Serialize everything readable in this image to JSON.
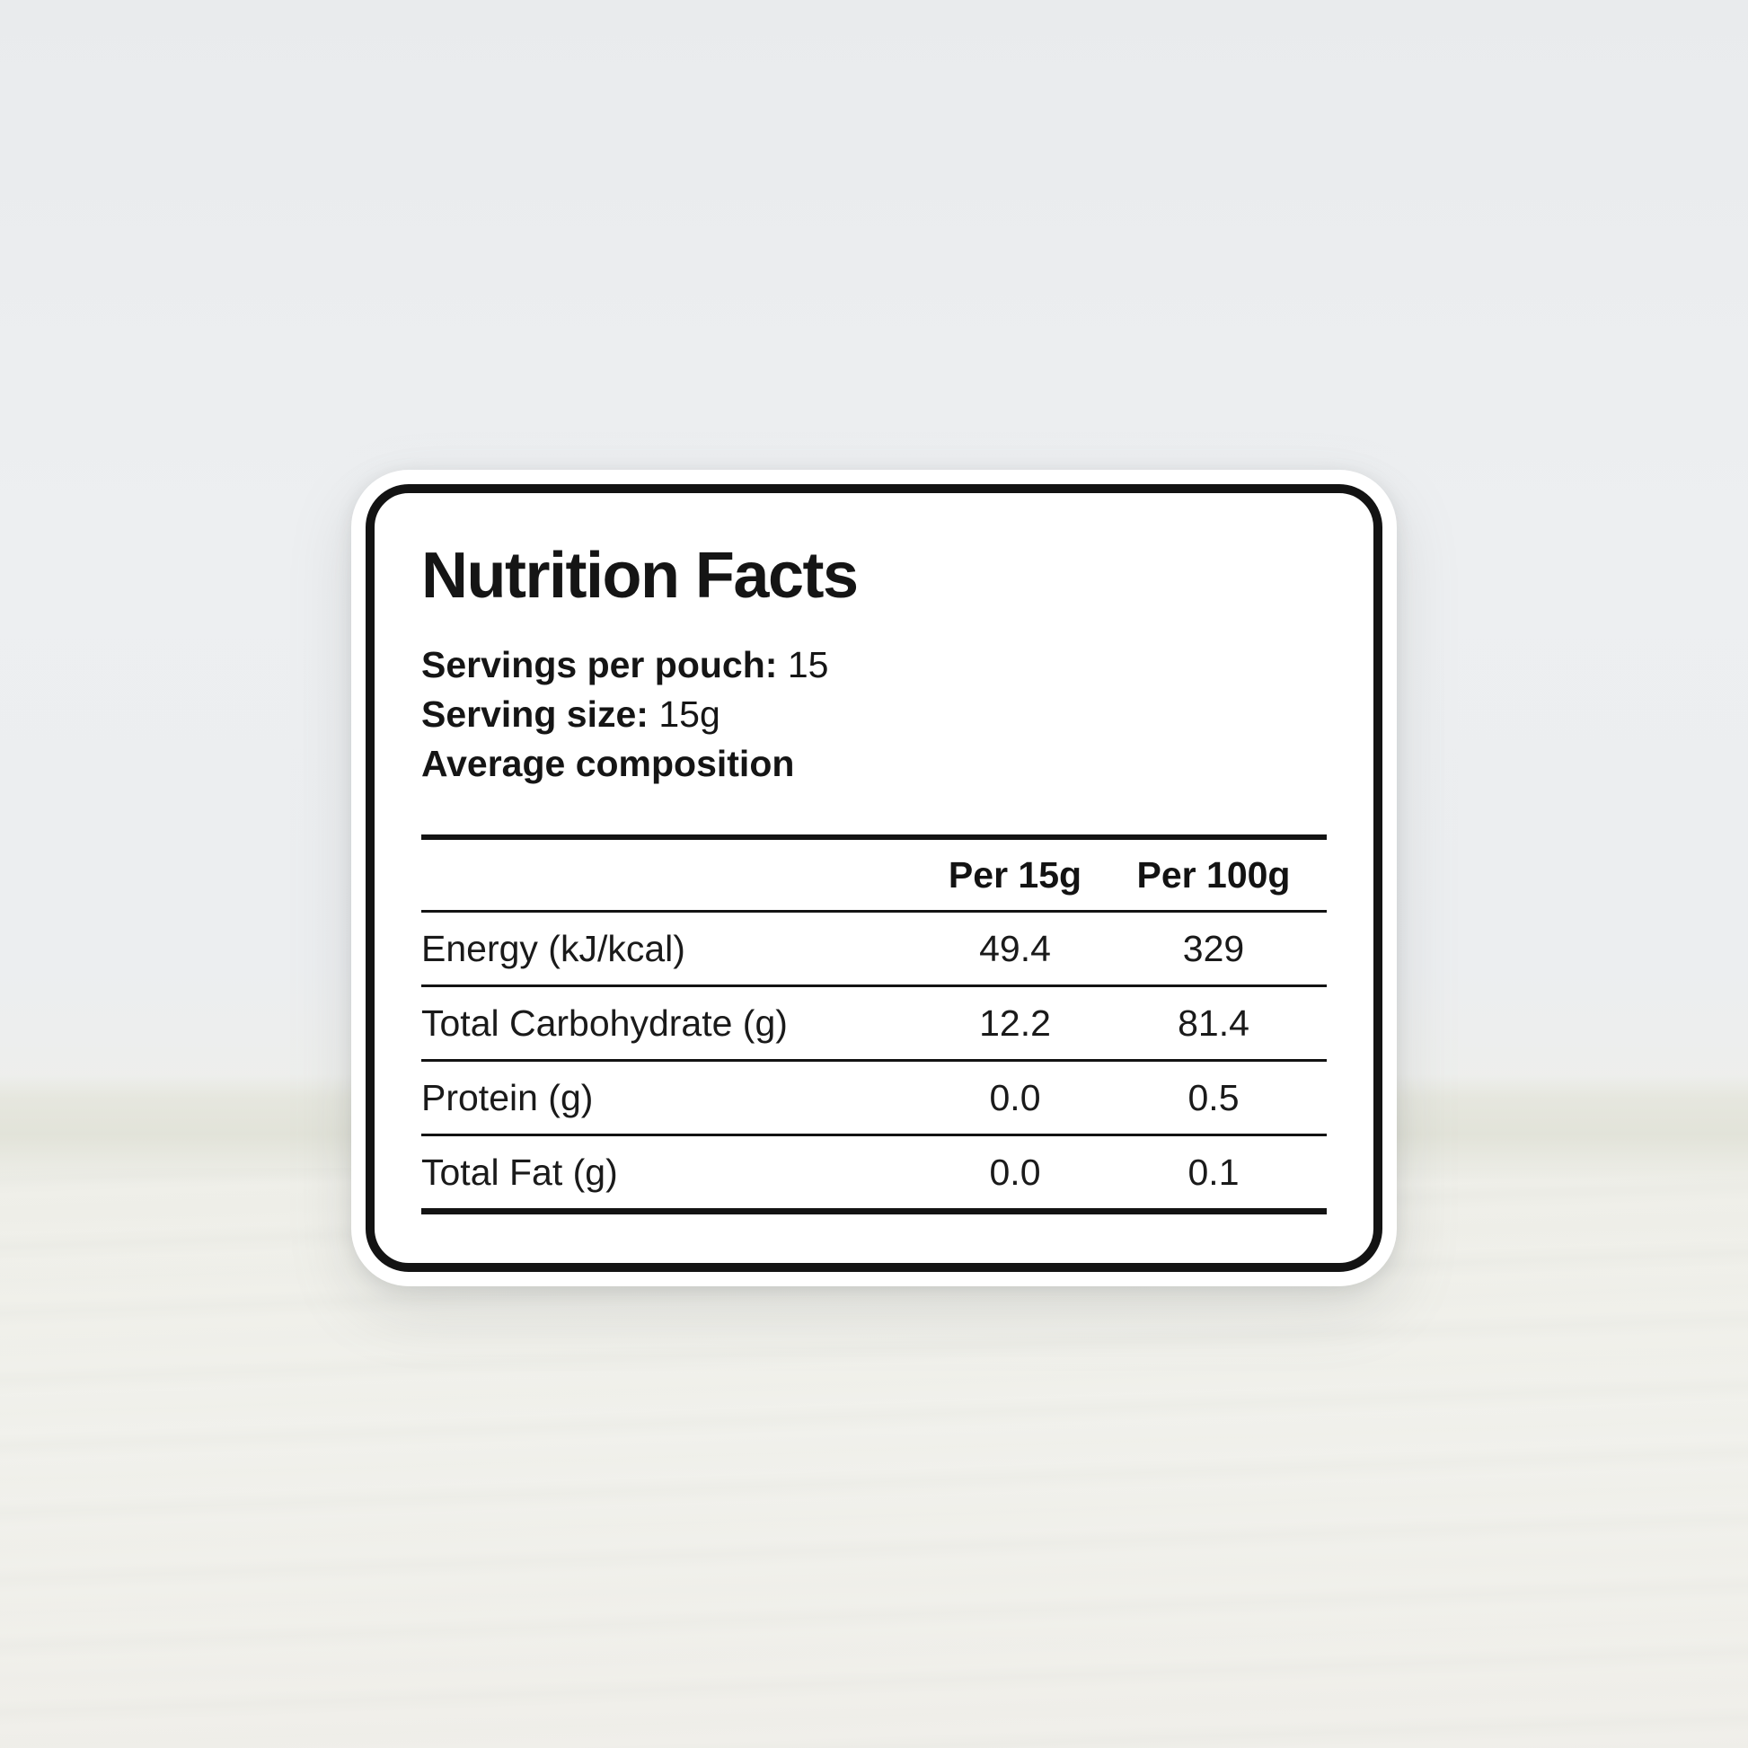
{
  "colors": {
    "background_wall": "#eceef0",
    "background_surface": "#f1f1ec",
    "backdrop_band": "#e4e5dd",
    "card_background": "#ffffff",
    "card_border": "#131313",
    "text": "#151515"
  },
  "label": {
    "title": "Nutrition Facts",
    "servings_per_pouch": {
      "label": "Servings per pouch:",
      "value": "15"
    },
    "serving_size": {
      "label": "Serving size:",
      "value": "15g"
    },
    "average_composition": "Average composition",
    "table": {
      "columns": {
        "per_serving": "Per 15g",
        "per_100g": "Per 100g"
      },
      "rows": [
        {
          "name": "Energy (kJ/kcal)",
          "per_serving": "49.4",
          "per_100g": "329"
        },
        {
          "name": "Total Carbohydrate (g)",
          "per_serving": "12.2",
          "per_100g": "81.4"
        },
        {
          "name": "Protein (g)",
          "per_serving": "0.0",
          "per_100g": "0.5"
        },
        {
          "name": "Total Fat (g)",
          "per_serving": "0.0",
          "per_100g": "0.1"
        }
      ]
    }
  }
}
